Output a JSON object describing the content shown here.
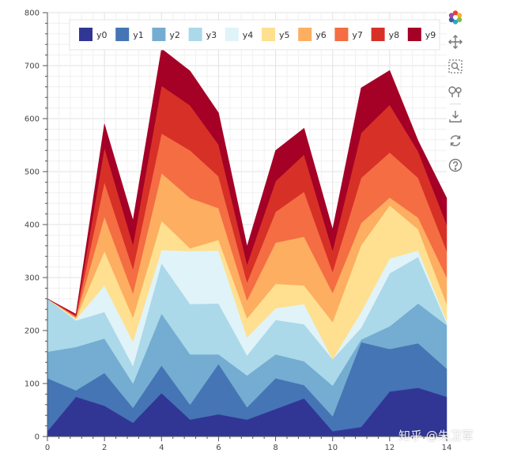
{
  "watermark": "知乎 @朱卫军",
  "toolbar": {
    "items": [
      {
        "name": "bokeh-logo-icon",
        "interactable": false
      },
      {
        "name": "pan-tool-icon",
        "interactable": true
      },
      {
        "name": "box-zoom-tool-icon",
        "interactable": true
      },
      {
        "name": "wheel-zoom-tool-icon",
        "interactable": true
      },
      {
        "name": "save-tool-icon",
        "interactable": true
      },
      {
        "name": "reset-tool-icon",
        "interactable": true
      },
      {
        "name": "help-tool-icon",
        "interactable": true
      }
    ]
  },
  "chart_data": {
    "type": "area",
    "stacked": true,
    "title": "",
    "xlabel": "",
    "ylabel": "",
    "x": [
      0,
      1,
      2,
      3,
      4,
      5,
      6,
      7,
      8,
      9,
      10,
      11,
      12,
      13,
      14
    ],
    "xlim": [
      0,
      14
    ],
    "ylim": [
      0,
      800
    ],
    "xticks": [
      0,
      2,
      4,
      6,
      8,
      10,
      12,
      14
    ],
    "yticks": [
      0,
      100,
      200,
      300,
      400,
      500,
      600,
      700,
      800
    ],
    "grid": true,
    "legend_position": "top",
    "series": [
      {
        "name": "y0",
        "color": "#313695",
        "values": [
          10,
          75,
          58,
          26,
          82,
          32,
          42,
          32,
          52,
          72,
          10,
          18,
          85,
          92,
          75
        ]
      },
      {
        "name": "y1",
        "color": "#4575b4",
        "values": [
          100,
          12,
          62,
          28,
          52,
          28,
          95,
          23,
          58,
          25,
          28,
          160,
          80,
          84,
          53
        ]
      },
      {
        "name": "y2",
        "color": "#74add1",
        "values": [
          50,
          82,
          65,
          46,
          98,
          95,
          18,
          60,
          45,
          45,
          58,
          5,
          43,
          75,
          82
        ]
      },
      {
        "name": "y3",
        "color": "#abd9e9",
        "values": [
          100,
          50,
          50,
          33,
          95,
          95,
          96,
          38,
          65,
          70,
          50,
          22,
          100,
          88,
          4
        ]
      },
      {
        "name": "y4",
        "color": "#e0f3f8",
        "values": [
          0,
          2,
          50,
          46,
          25,
          100,
          100,
          34,
          22,
          38,
          0,
          30,
          28,
          12,
          4
        ]
      },
      {
        "name": "y5",
        "color": "#fee090",
        "values": [
          0,
          2,
          65,
          45,
          55,
          5,
          20,
          36,
          46,
          35,
          70,
          126,
          100,
          40,
          32
        ]
      },
      {
        "name": "y6",
        "color": "#fdae61",
        "values": [
          0,
          2,
          65,
          46,
          90,
          95,
          60,
          34,
          78,
          92,
          55,
          42,
          15,
          22,
          50
        ]
      },
      {
        "name": "y7",
        "color": "#f46d43",
        "values": [
          0,
          2,
          65,
          46,
          75,
          90,
          60,
          34,
          58,
          85,
          40,
          85,
          85,
          75,
          50
        ]
      },
      {
        "name": "y8",
        "color": "#d73027",
        "values": [
          0,
          2,
          65,
          46,
          90,
          85,
          60,
          34,
          58,
          70,
          40,
          85,
          90,
          50,
          50
        ]
      },
      {
        "name": "y9",
        "color": "#a50026",
        "values": [
          0,
          2,
          45,
          46,
          70,
          65,
          60,
          34,
          58,
          50,
          40,
          85,
          65,
          20,
          50
        ]
      }
    ]
  }
}
